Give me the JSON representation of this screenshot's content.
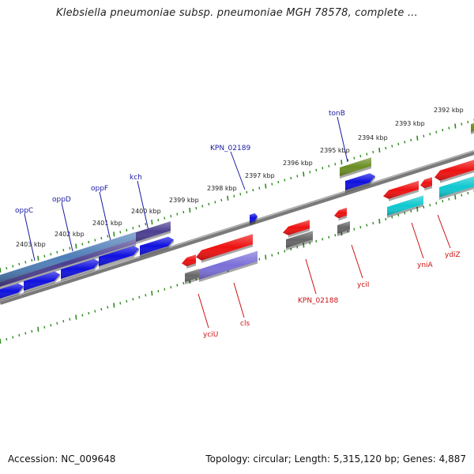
{
  "title": "Klebsiella pneumoniae subsp. pneumoniae MGH 78578, complete ...",
  "footer": {
    "accession": "Accession: NC_009648",
    "topology": "Topology: circular; Length: 5,315,120 bp; Genes: 4,887"
  },
  "colors": {
    "backbone": "#8a8a8a",
    "tick_green": "#2e8b1e",
    "label_blue": "#1a1aa0",
    "label_red": "#cc1111",
    "gene_blue": "#1010e0",
    "gene_darkpurple": "#4b3f8f",
    "gene_steel": "#4f7fb8",
    "gene_red": "#ee1111",
    "gene_lavender": "#7b6fd8",
    "gene_gray": "#666666",
    "gene_olive": "#6b8e23",
    "gene_cyan": "#10c8d0"
  },
  "kbp_labels": [
    "2403 kbp",
    "2402 kbp",
    "2401 kbp",
    "2400 kbp",
    "2399 kbp",
    "2398 kbp",
    "2397 kbp",
    "2396 kbp",
    "2395 kbp",
    "2394 kbp",
    "2393 kbp",
    "2392 kbp"
  ],
  "gene_labels_top": [
    "oppC",
    "oppD",
    "oppF",
    "kch",
    "KPN_02189",
    "tonB"
  ],
  "gene_labels_bottom": [
    "yciU",
    "cls",
    "KPN_02188",
    "yciI",
    "yniA",
    "ydiZ"
  ]
}
